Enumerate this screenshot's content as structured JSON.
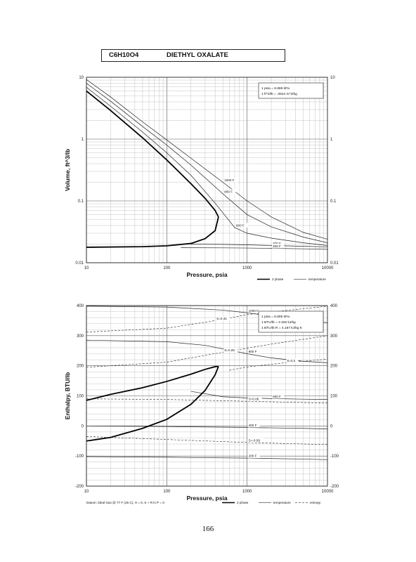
{
  "title": {
    "formula": "C6H10O4",
    "name": "DIETHYL OXALATE"
  },
  "page_number": "166",
  "chart_data": [
    {
      "type": "line",
      "xscale": "log",
      "yscale": "log",
      "xlim": [
        10,
        10000
      ],
      "ylim": [
        0.01,
        10
      ],
      "xlabel": "Pressure,  psia",
      "ylabel": "Volume, ft^3/lb",
      "x_ticks": [
        "10",
        "100",
        "1000",
        "10000"
      ],
      "y_ticks": [
        "10",
        "1",
        "0.1",
        "0.01"
      ],
      "conversion_note": [
        "1 psia  =  6.895 kPa",
        "1 ft^3/lb  =  .0624 m^3/kg"
      ],
      "legend": [
        "2 phase",
        "temperature"
      ],
      "series": [
        {
          "name": "1000 F",
          "x": [
            10,
            20,
            50,
            100,
            200,
            500,
            1000,
            2000,
            5000,
            10000
          ],
          "y": [
            9.2,
            4.8,
            1.9,
            0.97,
            0.49,
            0.2,
            0.1,
            0.055,
            0.031,
            0.024
          ]
        },
        {
          "name": "800 F",
          "x": [
            10,
            20,
            50,
            100,
            200,
            500,
            1000,
            2000,
            5000,
            10000
          ],
          "y": [
            8.0,
            4.1,
            1.6,
            0.8,
            0.38,
            0.13,
            0.06,
            0.038,
            0.026,
            0.021
          ]
        },
        {
          "name": "600 F",
          "x": [
            10,
            20,
            50,
            100,
            200,
            400,
            700,
            1000,
            2000,
            5000,
            10000
          ],
          "y": [
            6.9,
            3.4,
            1.3,
            0.6,
            0.26,
            0.092,
            0.037,
            0.03,
            0.025,
            0.021,
            0.019
          ]
        },
        {
          "name": "400 F",
          "x": [
            200,
            500,
            1000,
            2000,
            5000,
            10000
          ],
          "y": [
            0.02,
            0.0198,
            0.0195,
            0.019,
            0.0185,
            0.018
          ]
        },
        {
          "name": "200 F",
          "x": [
            150,
            500,
            1000,
            2000,
            5000,
            10000
          ],
          "y": [
            0.0175,
            0.0174,
            0.0173,
            0.0171,
            0.0168,
            0.0165
          ]
        },
        {
          "name": "2 phase vapor",
          "x": [
            10,
            20,
            50,
            100,
            200,
            300,
            400,
            440
          ],
          "y": [
            6.0,
            2.9,
            1.05,
            0.46,
            0.19,
            0.11,
            0.07,
            0.055
          ]
        },
        {
          "name": "2 phase liquid",
          "x": [
            10,
            50,
            100,
            200,
            300,
            400,
            440
          ],
          "y": [
            0.0178,
            0.0182,
            0.0188,
            0.0205,
            0.0245,
            0.033,
            0.055
          ]
        }
      ],
      "annotations": [
        "1000 F",
        "800 F",
        "600 F",
        "400 F",
        "200 F"
      ]
    },
    {
      "type": "line",
      "xscale": "log",
      "xlim": [
        10,
        10000
      ],
      "ylim": [
        -200,
        400
      ],
      "xlabel": "Pressure,  psia",
      "ylabel": "Enthalpy, BTU/lb",
      "x_ticks": [
        "10",
        "100",
        "1000",
        "10000"
      ],
      "y_ticks": [
        "400",
        "300",
        "200",
        "100",
        "0",
        "-100",
        "-200"
      ],
      "conversion_note": [
        "1 psia  =  6.895 kPa",
        "1 BTU/lb  =  2.326 kJ/kg",
        "1 BTU/lb R  =  4.187 kJ/kg K"
      ],
      "footnote": "Datum: Ideal Gas @ 77 F (25 C), H = 0, S + R ln P = 0",
      "legend": [
        "2 phase",
        "temperature",
        "entropy"
      ],
      "series": [
        {
          "name": "1000 F",
          "x": [
            10,
            100,
            500,
            1000,
            2000,
            5000,
            10000
          ],
          "y": [
            398,
            395,
            385,
            376,
            365,
            352,
            343
          ]
        },
        {
          "name": "800 F",
          "x": [
            10,
            100,
            300,
            1000,
            2000,
            5000,
            10000
          ],
          "y": [
            285,
            280,
            268,
            240,
            226,
            215,
            210
          ]
        },
        {
          "name": "600 F",
          "x": [
            200,
            500,
            1000,
            2000,
            5000,
            10000
          ],
          "y": [
            115,
            97,
            93,
            91,
            89,
            88
          ]
        },
        {
          "name": "400 F",
          "x": [
            10,
            100,
            1000,
            5000,
            10000
          ],
          "y": [
            0,
            -2,
            -5,
            -8,
            -10
          ]
        },
        {
          "name": "200 F",
          "x": [
            10,
            100,
            1000,
            5000,
            10000
          ],
          "y": [
            -102,
            -104,
            -107,
            -110,
            -112
          ]
        },
        {
          "name": "2 phase vapor",
          "x": [
            10,
            20,
            50,
            100,
            200,
            300,
            400,
            440
          ],
          "y": [
            85,
            105,
            127,
            148,
            172,
            188,
            197,
            198
          ]
        },
        {
          "name": "2 phase liquid",
          "x": [
            10,
            20,
            50,
            100,
            200,
            300,
            400,
            440
          ],
          "y": [
            -50,
            -38,
            -8,
            22,
            72,
            118,
            170,
            198
          ]
        },
        {
          "name": "S=0.31",
          "x": [
            10,
            100,
            400,
            1000,
            10000
          ],
          "y": [
            312,
            325,
            350,
            370,
            398
          ]
        },
        {
          "name": "S=0.26",
          "x": [
            10,
            100,
            500,
            2000,
            10000
          ],
          "y": [
            195,
            212,
            245,
            272,
            300
          ]
        },
        {
          "name": "S=0.2",
          "x": [
            600,
            1000,
            3000,
            10000
          ],
          "y": [
            185,
            196,
            210,
            222
          ]
        },
        {
          "name": "S=0.06",
          "x": [
            10,
            100,
            1000,
            10000
          ],
          "y": [
            90,
            88,
            82,
            76
          ]
        },
        {
          "name": "S=-0.09",
          "x": [
            10,
            100,
            1000,
            10000
          ],
          "y": [
            -35,
            -45,
            -55,
            -62
          ]
        }
      ],
      "annotations": [
        "1000 F",
        "800 F",
        "600 F",
        "400 F",
        "200 F",
        "S=0.31",
        "S=0.26",
        "S=0.2",
        "S=0.06",
        "S=-0.09"
      ]
    }
  ]
}
